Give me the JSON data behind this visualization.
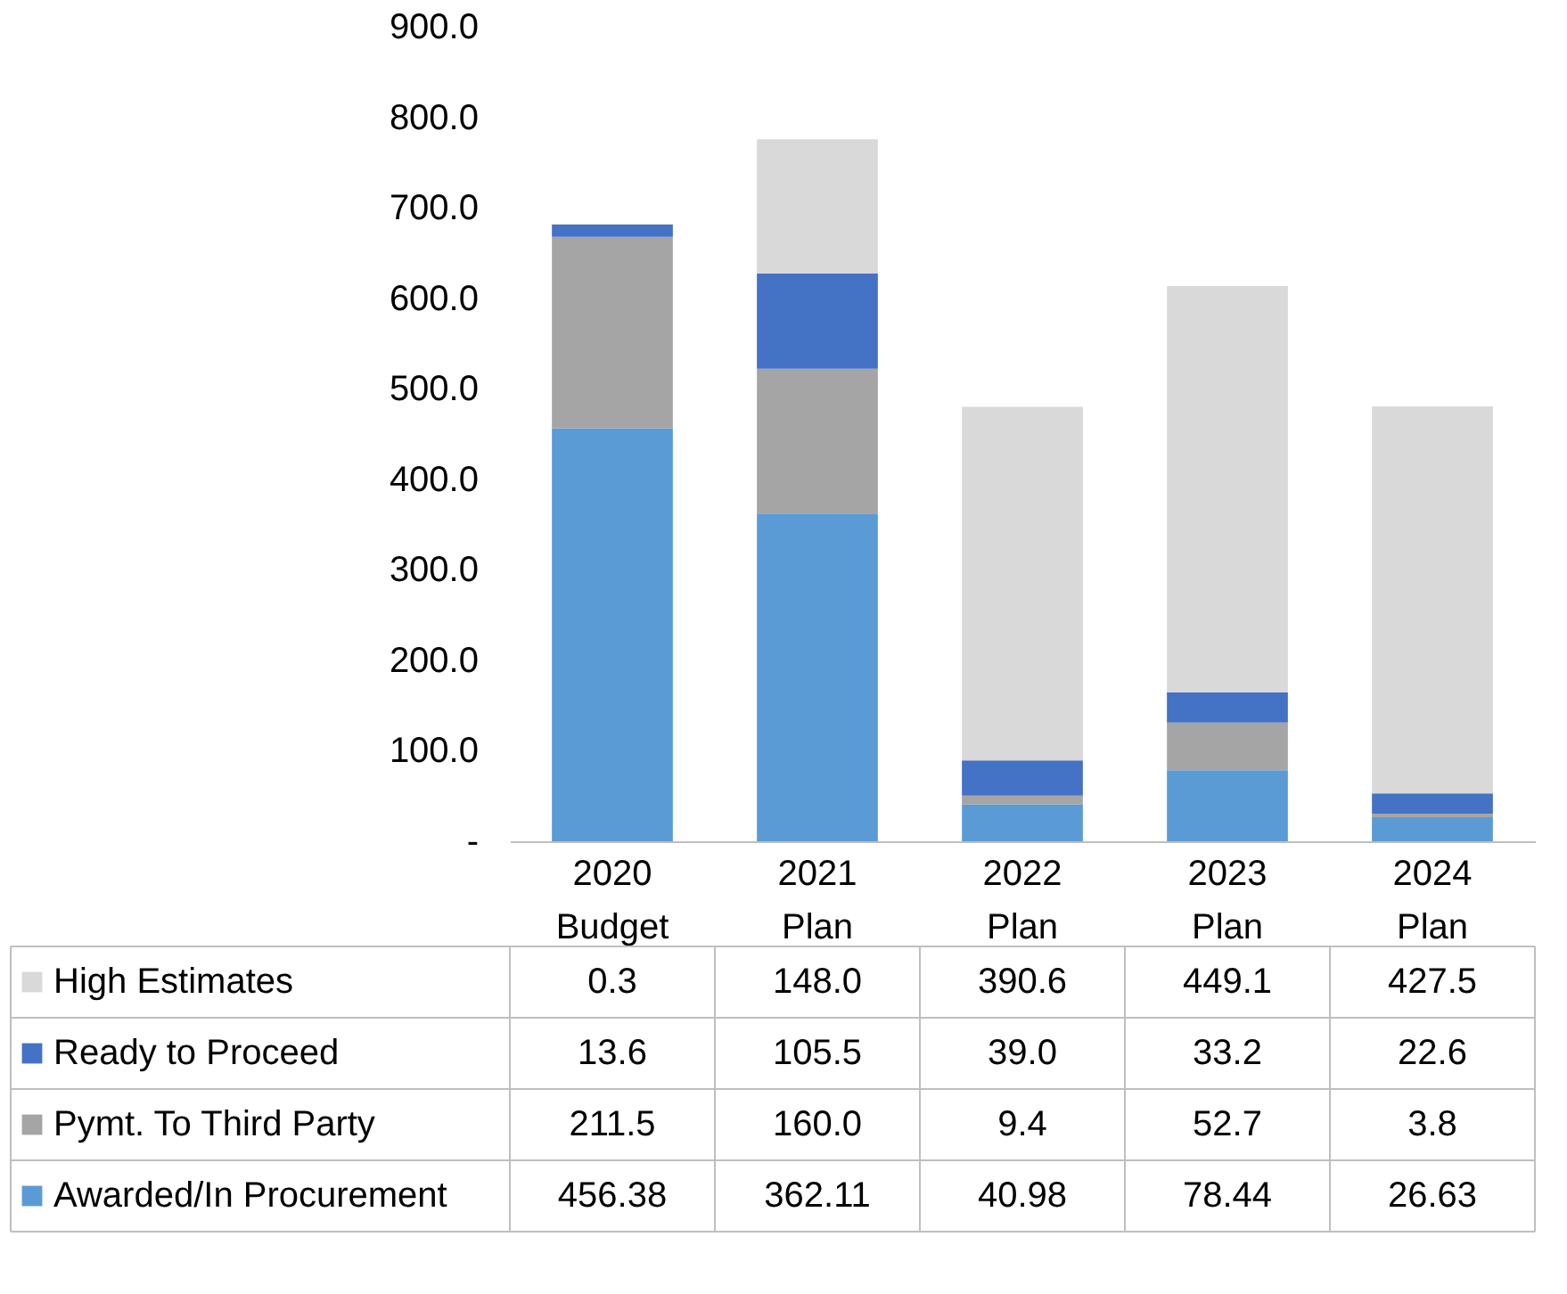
{
  "chart_data": {
    "type": "bar",
    "stacked": true,
    "legend": "bottom",
    "grid": false,
    "categories": [
      "2020 Budget",
      "2021 Plan",
      "2022 Plan",
      "2023 Plan",
      "2024 Plan"
    ],
    "ylim": [
      0,
      900
    ],
    "yticks": [
      {
        "value": 0,
        "label": "-"
      },
      {
        "value": 100,
        "label": "100.0"
      },
      {
        "value": 200,
        "label": "200.0"
      },
      {
        "value": 300,
        "label": "300.0"
      },
      {
        "value": 400,
        "label": "400.0"
      },
      {
        "value": 500,
        "label": "500.0"
      },
      {
        "value": 600,
        "label": "600.0"
      },
      {
        "value": 700,
        "label": "700.0"
      },
      {
        "value": 800,
        "label": "800.0"
      },
      {
        "value": 900,
        "label": "900.0"
      }
    ],
    "series": [
      {
        "name": "Awarded/In Procurement",
        "color": "#5b9bd5",
        "values": [
          456.38,
          362.11,
          40.98,
          78.44,
          26.63
        ],
        "value_labels": [
          "456.38",
          "362.11",
          "40.98",
          "78.44",
          "26.63"
        ]
      },
      {
        "name": "Pymt. To Third Party",
        "color": "#a5a5a5",
        "values": [
          211.5,
          160.0,
          9.4,
          52.7,
          3.8
        ],
        "value_labels": [
          "211.5",
          "160.0",
          "9.4",
          "52.7",
          "3.8"
        ]
      },
      {
        "name": "Ready to Proceed",
        "color": "#4472c4",
        "values": [
          13.6,
          105.5,
          39.0,
          33.2,
          22.6
        ],
        "value_labels": [
          "13.6",
          "105.5",
          "39.0",
          "33.2",
          "22.6"
        ]
      },
      {
        "name": "High Estimates",
        "color": "#d9d9d9",
        "values": [
          0.3,
          148.0,
          390.6,
          449.1,
          427.5
        ],
        "value_labels": [
          "0.3",
          "148.0",
          "390.6",
          "449.1",
          "427.5"
        ]
      }
    ]
  }
}
